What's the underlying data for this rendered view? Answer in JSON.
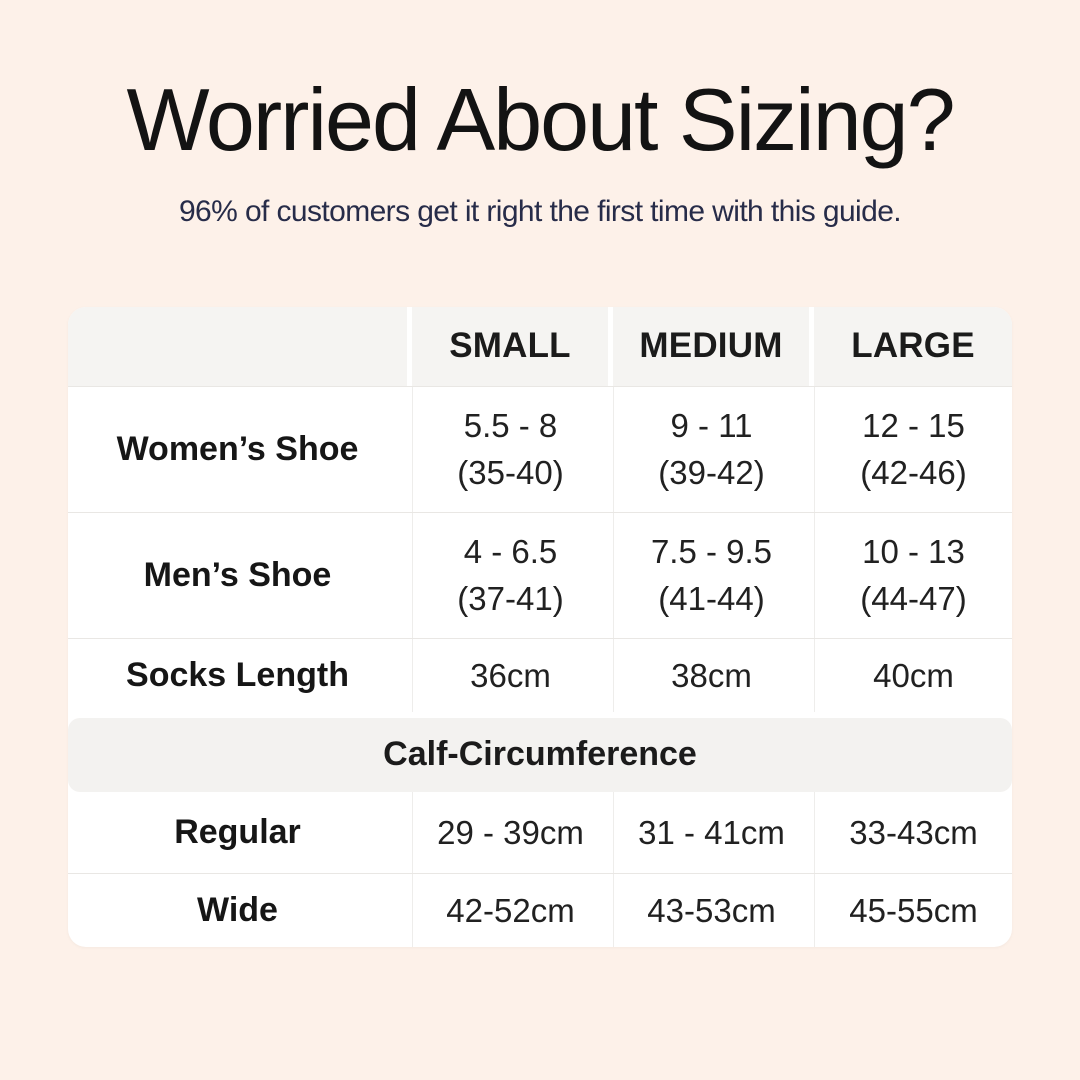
{
  "page": {
    "background_color": "#fdf1e9",
    "accent_text_color": "#272c49"
  },
  "header": {
    "title": "Worried About Sizing?",
    "subtitle": "96% of customers get it right the first time with this guide."
  },
  "table": {
    "columns": [
      "",
      "SMALL",
      "MEDIUM",
      "LARGE"
    ],
    "rows": [
      {
        "label": "Women’s Shoe",
        "values": [
          [
            "5.5 - 8",
            "(35-40)"
          ],
          [
            "9 - 11",
            "(39-42)"
          ],
          [
            "12 - 15",
            "(42-46)"
          ]
        ]
      },
      {
        "label": "Men’s Shoe",
        "values": [
          [
            "4 - 6.5",
            "(37-41)"
          ],
          [
            "7.5 - 9.5",
            "(41-44)"
          ],
          [
            "10 - 13",
            "(44-47)"
          ]
        ]
      },
      {
        "label": "Socks Length",
        "values": [
          [
            "36cm"
          ],
          [
            "38cm"
          ],
          [
            "40cm"
          ]
        ]
      }
    ],
    "section_label": "Calf-Circumference",
    "calf_rows": [
      {
        "label": "Regular",
        "values": [
          [
            "29 - 39cm"
          ],
          [
            "31 - 41cm"
          ],
          [
            "33-43cm"
          ]
        ]
      },
      {
        "label": "Wide",
        "values": [
          [
            "42-52cm"
          ],
          [
            "43-53cm"
          ],
          [
            "45-55cm"
          ]
        ]
      }
    ]
  }
}
